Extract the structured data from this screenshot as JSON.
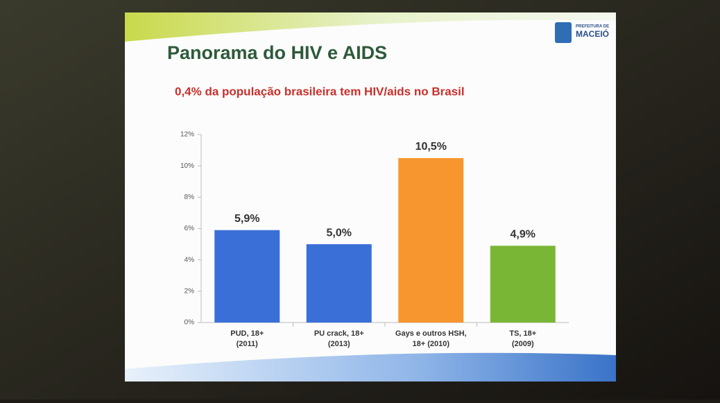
{
  "logo": [
    "PREFEITURA DE",
    "MACEIÓ"
  ],
  "chart_data": {
    "type": "bar",
    "title": "Panorama do HIV e AIDS",
    "subtitle": "0,4% da população brasileira tem HIV/aids no Brasil",
    "categories": [
      [
        "PUD, 18+",
        "(2011)"
      ],
      [
        "PU crack, 18+",
        "(2013)"
      ],
      [
        "Gays e outros HSH,",
        "18+ (2010)"
      ],
      [
        "TS, 18+",
        "(2009)"
      ]
    ],
    "values": [
      5.9,
      5.0,
      10.5,
      4.9
    ],
    "value_labels": [
      "5,9%",
      "5,0%",
      "10,5%",
      "4,9%"
    ],
    "colors": [
      "#3a6fd8",
      "#3a6fd8",
      "#f7962f",
      "#7ab635"
    ],
    "ylim": [
      0,
      12
    ],
    "yticks": [
      {
        "value": 0,
        "label": "0%"
      },
      {
        "value": 2,
        "label": "2%"
      },
      {
        "value": 4,
        "label": "4%"
      },
      {
        "value": 6,
        "label": "6%"
      },
      {
        "value": 8,
        "label": "8%"
      },
      {
        "value": 10,
        "label": "10%"
      },
      {
        "value": 12,
        "label": "12%"
      }
    ]
  }
}
